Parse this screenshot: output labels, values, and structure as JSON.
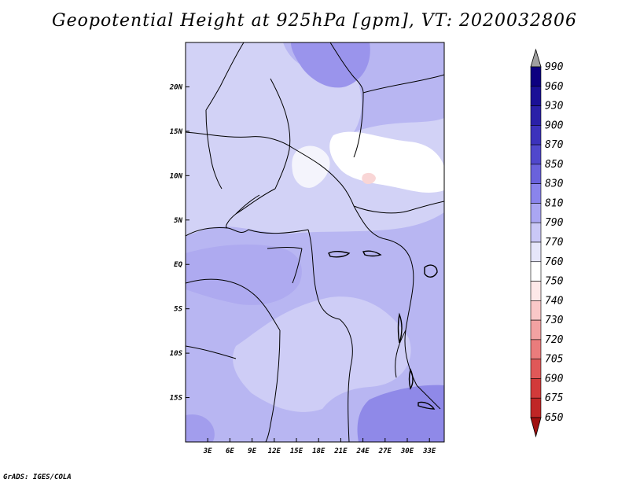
{
  "chart_data": {
    "type": "heatmap",
    "title": "Geopotential Height at 925hPa [gpm], VT: 2020032806",
    "variable": "Geopotential Height at 925hPa",
    "units": "gpm",
    "valid_time": "2020032806",
    "xlim": [
      0,
      35
    ],
    "ylim": [
      -20,
      25
    ],
    "x_ticks": [
      {
        "value": 3,
        "label": "3E"
      },
      {
        "value": 6,
        "label": "6E"
      },
      {
        "value": 9,
        "label": "9E"
      },
      {
        "value": 12,
        "label": "12E"
      },
      {
        "value": 15,
        "label": "15E"
      },
      {
        "value": 18,
        "label": "18E"
      },
      {
        "value": 21,
        "label": "21E"
      },
      {
        "value": 24,
        "label": "24E"
      },
      {
        "value": 27,
        "label": "27E"
      },
      {
        "value": 30,
        "label": "30E"
      },
      {
        "value": 33,
        "label": "33E"
      }
    ],
    "y_ticks": [
      {
        "value": 20,
        "label": "20N"
      },
      {
        "value": 15,
        "label": "15N"
      },
      {
        "value": 10,
        "label": "10N"
      },
      {
        "value": 5,
        "label": "5N"
      },
      {
        "value": 0,
        "label": "EQ"
      },
      {
        "value": -5,
        "label": "5S"
      },
      {
        "value": -10,
        "label": "10S"
      },
      {
        "value": -15,
        "label": "15S"
      }
    ],
    "colorbar": {
      "levels": [
        {
          "value": "990",
          "color": "#0d0080"
        },
        {
          "value": "960",
          "color": "#1a1096"
        },
        {
          "value": "930",
          "color": "#2a20a8"
        },
        {
          "value": "900",
          "color": "#3c32bc"
        },
        {
          "value": "870",
          "color": "#5048cc"
        },
        {
          "value": "850",
          "color": "#6a62dc"
        },
        {
          "value": "830",
          "color": "#8a84ec"
        },
        {
          "value": "810",
          "color": "#aaa6f2"
        },
        {
          "value": "790",
          "color": "#cac8f6"
        },
        {
          "value": "770",
          "color": "#e6e6fa"
        },
        {
          "value": "760",
          "color": "#ffffff"
        },
        {
          "value": "750",
          "color": "#fde8e8"
        },
        {
          "value": "740",
          "color": "#f9c8c8"
        },
        {
          "value": "730",
          "color": "#f2a2a2"
        },
        {
          "value": "720",
          "color": "#ea7c7c"
        },
        {
          "value": "705",
          "color": "#e05858"
        },
        {
          "value": "690",
          "color": "#d23a3a"
        },
        {
          "value": "675",
          "color": "#c02626"
        },
        {
          "value": "650",
          "color": "#a81616"
        }
      ],
      "over_color": "#a0a0a0",
      "under_color": "#a01010"
    },
    "field_regions": [
      {
        "name": "background",
        "value": 805,
        "color": "#b8b6f2"
      },
      {
        "name": "sahel-plateau",
        "value": 790,
        "color": "#d2d2f6"
      },
      {
        "name": "central-plateau",
        "value": 790,
        "color": "#cecdf6"
      },
      {
        "name": "east-highlands-low",
        "value": 770,
        "color": "#ffffff"
      },
      {
        "name": "darfur-low",
        "value": 775,
        "color": "#f4f4fc"
      },
      {
        "name": "sahara-high",
        "value": 840,
        "color": "#9a94ec"
      },
      {
        "name": "congo-high",
        "value": 815,
        "color": "#aeaaf0"
      },
      {
        "name": "southeast-high",
        "value": 845,
        "color": "#8f89e8"
      },
      {
        "name": "southwest-high",
        "value": 835,
        "color": "#a29ded"
      },
      {
        "name": "pink-spot",
        "value": 755,
        "color": "#f9d6d6"
      }
    ]
  },
  "footer": "GrADS: IGES/COLA"
}
